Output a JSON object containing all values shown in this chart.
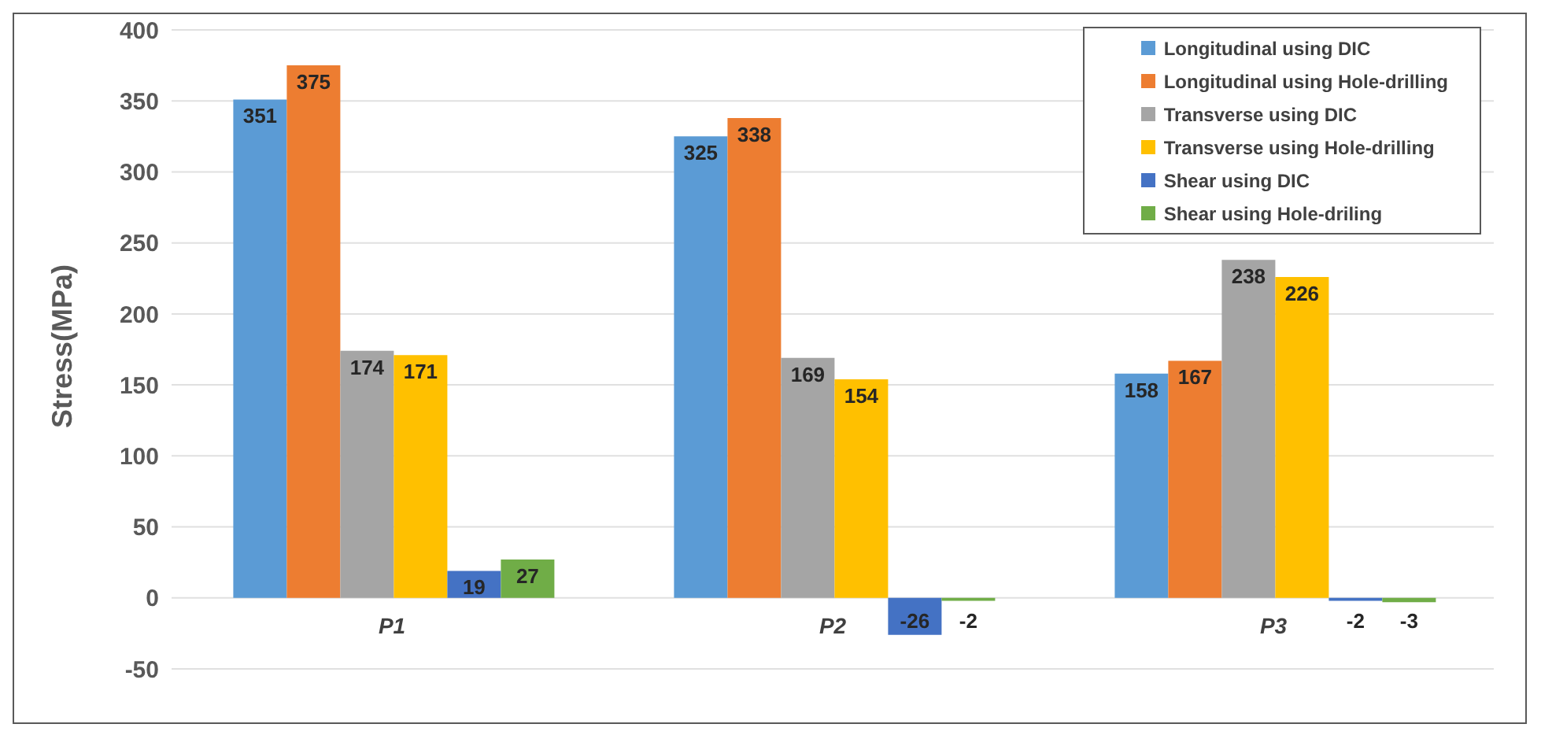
{
  "chart_data": {
    "type": "bar",
    "ylabel": "Stress(MPa)",
    "categories": [
      "P1",
      "P2",
      "P3"
    ],
    "series": [
      {
        "name": "Longitudinal using DIC",
        "color": "#5b9bd5",
        "values": [
          351,
          325,
          158
        ]
      },
      {
        "name": "Longitudinal using Hole-drilling",
        "color": "#ed7d31",
        "values": [
          375,
          338,
          167
        ]
      },
      {
        "name": "Transverse using DIC",
        "color": "#a5a5a5",
        "values": [
          174,
          169,
          238
        ]
      },
      {
        "name": "Transverse using Hole-drilling",
        "color": "#ffc000",
        "values": [
          171,
          154,
          226
        ]
      },
      {
        "name": "Shear using DIC",
        "color": "#4472c4",
        "values": [
          19,
          -26,
          -2
        ]
      },
      {
        "name": "Shear using Hole-driling",
        "color": "#70ad47",
        "values": [
          27,
          -2,
          -3
        ]
      }
    ],
    "ylim": [
      -50,
      400
    ],
    "yticks": [
      -50,
      0,
      50,
      100,
      150,
      200,
      250,
      300,
      350,
      400
    ],
    "grid": "y",
    "legend": "top right",
    "data_labels": true
  }
}
